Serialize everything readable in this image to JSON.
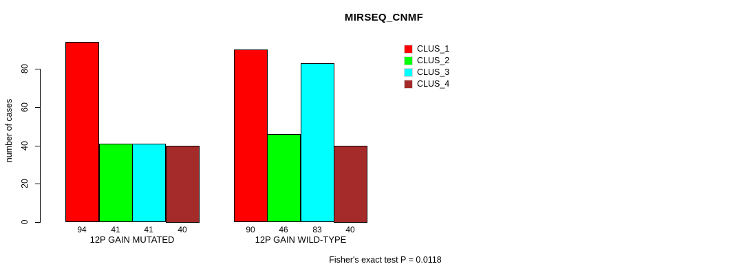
{
  "chart_data": {
    "type": "bar",
    "title": "MIRSEQ_CNMF",
    "ylabel": "number of cases",
    "xlabel": "",
    "ylim": [
      0,
      94
    ],
    "yticks": [
      0,
      20,
      40,
      60,
      80
    ],
    "grid": false,
    "legend_position": "right-of-plot-top",
    "categories": [
      "12P GAIN MUTATED",
      "12P GAIN WILD-TYPE"
    ],
    "series": [
      {
        "name": "CLUS_1",
        "color": "#ff0000",
        "values": [
          94,
          90
        ]
      },
      {
        "name": "CLUS_2",
        "color": "#00ff00",
        "values": [
          41,
          46
        ]
      },
      {
        "name": "CLUS_3",
        "color": "#00ffff",
        "values": [
          41,
          83
        ]
      },
      {
        "name": "CLUS_4",
        "color": "#a52a2a",
        "values": [
          40,
          40
        ]
      }
    ],
    "bar_value_labels": [
      [
        94,
        41,
        41,
        40
      ],
      [
        90,
        46,
        83,
        40
      ]
    ],
    "annotation": "Fisher's exact test P = 0.0118",
    "axis_color": "#000000",
    "bar_border_color": "#000000",
    "background_color": "#ffffff"
  }
}
